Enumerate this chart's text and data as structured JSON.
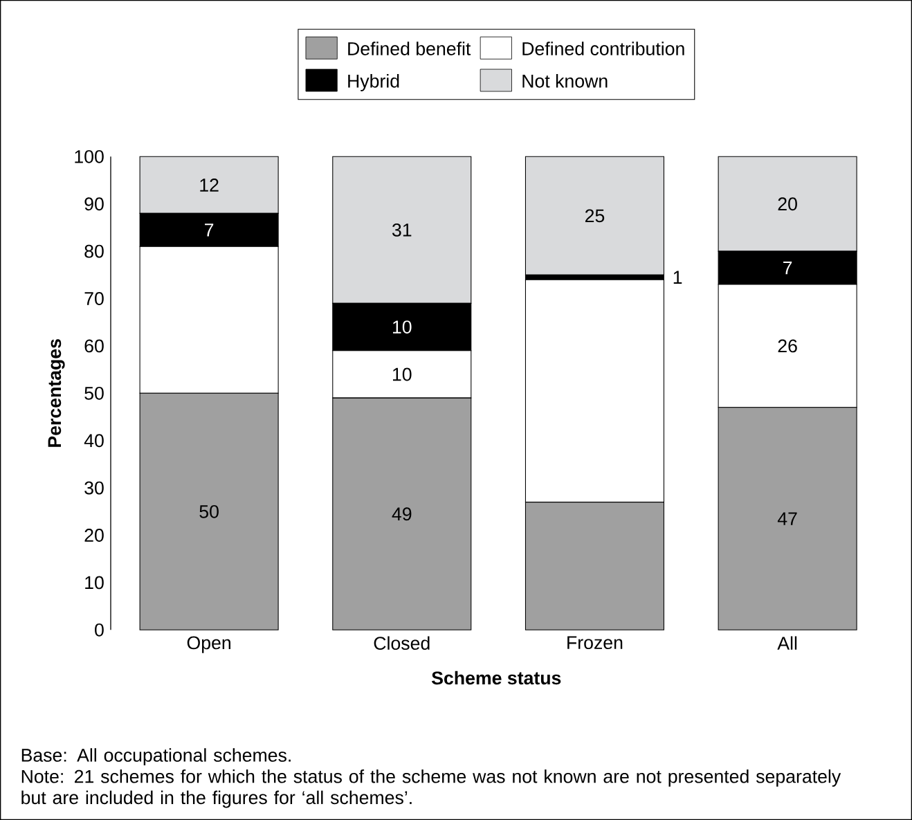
{
  "chart_data": {
    "type": "bar",
    "stacked": true,
    "categories": [
      "Open",
      "Closed",
      "Frozen",
      "All"
    ],
    "series": [
      {
        "name": "Defined benefit",
        "color": "#a0a0a0",
        "values": [
          50,
          49,
          27,
          47
        ],
        "value_labels": [
          "50",
          "49",
          null,
          "47"
        ]
      },
      {
        "name": "Defined contribution",
        "color": "#ffffff",
        "values": [
          31,
          10,
          47,
          26
        ],
        "value_labels": [
          null,
          "10",
          null,
          "26"
        ]
      },
      {
        "name": "Hybrid",
        "color": "#000000",
        "values": [
          7,
          10,
          1,
          7
        ],
        "value_labels": [
          "7",
          "10",
          "1",
          "7"
        ]
      },
      {
        "name": "Not known",
        "color": "#d9dadc",
        "values": [
          12,
          31,
          25,
          20
        ],
        "value_labels": [
          "12",
          "31",
          "25",
          "20"
        ]
      }
    ],
    "ylim": [
      0,
      100
    ],
    "yticks": [
      0,
      10,
      20,
      30,
      40,
      50,
      60,
      70,
      80,
      90,
      100
    ],
    "xlabel": "Scheme status",
    "ylabel": "Percentages",
    "legend": "top",
    "grid": false,
    "annotations": [
      "Base: All occupational schemes.",
      "Note: 21 schemes for which the status of the scheme was not known are not presented separately but are included in the figures for ‘all schemes’."
    ]
  }
}
